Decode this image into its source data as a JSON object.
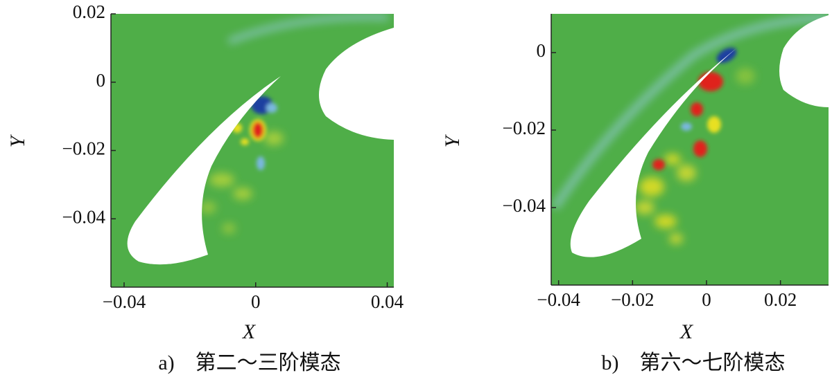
{
  "chart_data": [
    {
      "type": "contour",
      "title": "a)　第二～三阶模态",
      "x_label": "X",
      "y_label": "Y",
      "xlim": [
        -0.044,
        0.042
      ],
      "ylim": [
        -0.06,
        0.02
      ],
      "xticks": [
        {
          "value": -0.04,
          "label": "−0.04"
        },
        0,
        0.04
      ],
      "yticks": [
        0.02,
        0,
        {
          "value": -0.02,
          "label": "−0.02"
        },
        {
          "value": -0.04,
          "label": "−0.04"
        }
      ]
    },
    {
      "type": "contour",
      "title": "b)　第六～七阶模态",
      "x_label": "X",
      "y_label": "Y",
      "xlim": [
        -0.042,
        0.033
      ],
      "ylim": [
        -0.06,
        0.01
      ],
      "xticks": [
        {
          "value": -0.04,
          "label": "−0.04"
        },
        {
          "value": -0.02,
          "label": "−0.02"
        },
        0,
        0.02
      ],
      "yticks": [
        0,
        {
          "value": -0.02,
          "label": "−0.02"
        },
        {
          "value": -0.04,
          "label": "−0.04"
        }
      ]
    }
  ]
}
